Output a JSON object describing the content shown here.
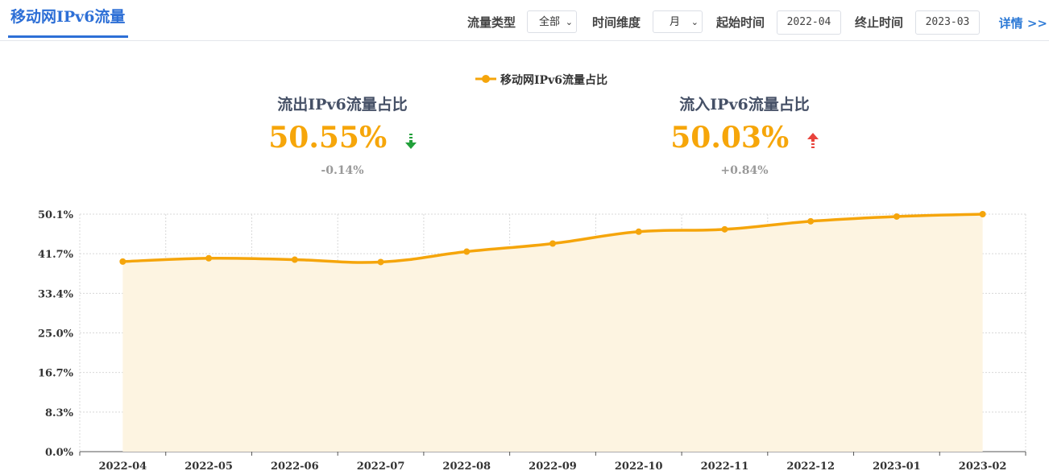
{
  "header": {
    "tab_title": "移动网IPv6流量",
    "filters": {
      "traffic_type_label": "流量类型",
      "traffic_type_value": "全部",
      "time_dim_label": "时间维度",
      "time_dim_value": "月",
      "start_label": "起始时间",
      "start_value": "2022-04",
      "end_label": "终止时间",
      "end_value": "2023-03"
    },
    "detail_link": "详情 >>"
  },
  "stats": {
    "outflow": {
      "title": "流出IPv6流量占比",
      "value": "50.55%",
      "change": "-0.14%",
      "direction": "down",
      "arrow_color": "#22a03a"
    },
    "inflow": {
      "title": "流入IPv6流量占比",
      "value": "50.03%",
      "change": "+0.84%",
      "direction": "up",
      "arrow_color": "#e8433c"
    }
  },
  "chart_data": {
    "type": "area",
    "legend": [
      "移动网IPv6流量占比"
    ],
    "categories": [
      "2022-04",
      "2022-05",
      "2022-06",
      "2022-07",
      "2022-08",
      "2022-09",
      "2022-10",
      "2022-11",
      "2022-12",
      "2023-01",
      "2023-02"
    ],
    "series": [
      {
        "name": "移动网IPv6流量占比",
        "values": [
          40.1,
          40.8,
          40.5,
          40.0,
          42.2,
          43.9,
          46.4,
          46.9,
          48.6,
          49.6,
          50.1
        ]
      }
    ],
    "y_ticks": [
      "0.0%",
      "8.3%",
      "16.7%",
      "25.0%",
      "33.4%",
      "41.7%",
      "50.1%"
    ],
    "ylim": [
      0,
      50.1
    ],
    "grid": true,
    "legend_position": "top-center",
    "line_color": "#f5a50b",
    "fill_color": "#fdf4e1"
  }
}
